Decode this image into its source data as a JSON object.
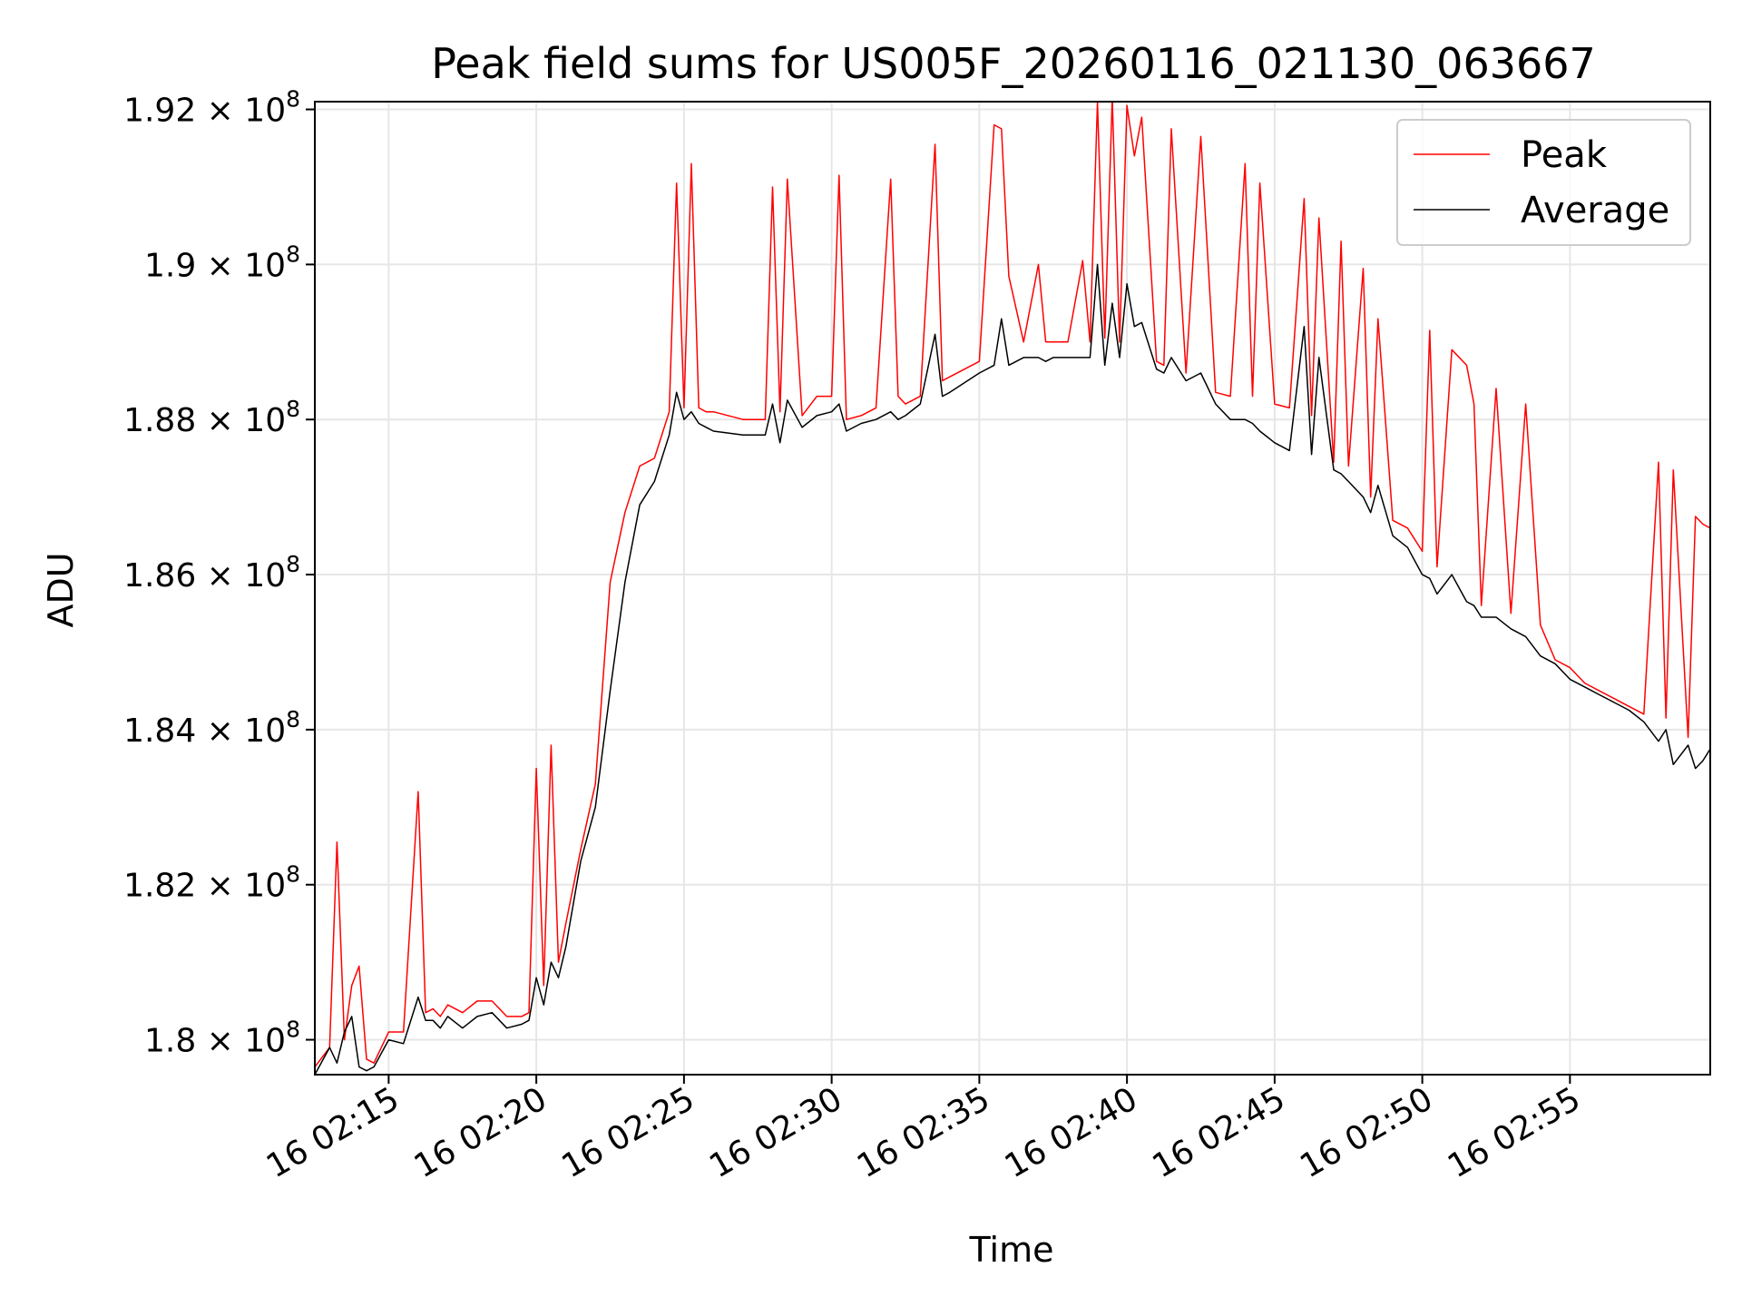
{
  "chart_data": {
    "type": "line",
    "title": "Peak field sums for US005F_20260116_021130_063667",
    "xlabel": "Time",
    "ylabel": "ADU",
    "x_range": [
      "16 02:12:30",
      "16 02:59:45"
    ],
    "ylim": [
      179.55,
      192.1
    ],
    "y_unit_note": "values in 10^6 ADU",
    "x_ticks": [
      "16 02:15",
      "16 02:20",
      "16 02:25",
      "16 02:30",
      "16 02:35",
      "16 02:40",
      "16 02:45",
      "16 02:50",
      "16 02:55"
    ],
    "y_ticks": [
      {
        "mantissa": "1.8",
        "exp": "8"
      },
      {
        "mantissa": "1.82",
        "exp": "8"
      },
      {
        "mantissa": "1.84",
        "exp": "8"
      },
      {
        "mantissa": "1.86",
        "exp": "8"
      },
      {
        "mantissa": "1.88",
        "exp": "8"
      },
      {
        "mantissa": "1.9",
        "exp": "8"
      },
      {
        "mantissa": "1.92",
        "exp": "8"
      }
    ],
    "grid": true,
    "legend_position": "top-right",
    "series": [
      {
        "name": "Peak",
        "color": "#ff0000",
        "x": [
          "02:12:30",
          "02:13:00",
          "02:13:15",
          "02:13:30",
          "02:13:45",
          "02:14:00",
          "02:14:15",
          "02:14:30",
          "02:15:00",
          "02:15:30",
          "02:16:00",
          "02:16:15",
          "02:16:30",
          "02:16:45",
          "02:17:00",
          "02:17:30",
          "02:18:00",
          "02:18:30",
          "02:19:00",
          "02:19:30",
          "02:19:45",
          "02:20:00",
          "02:20:15",
          "02:20:30",
          "02:20:45",
          "02:21:00",
          "02:21:30",
          "02:22:00",
          "02:22:30",
          "02:23:00",
          "02:23:30",
          "02:24:00",
          "02:24:30",
          "02:24:45",
          "02:25:00",
          "02:25:15",
          "02:25:30",
          "02:25:45",
          "02:26:00",
          "02:27:00",
          "02:27:45",
          "02:28:00",
          "02:28:15",
          "02:28:30",
          "02:29:00",
          "02:29:30",
          "02:30:00",
          "02:30:15",
          "02:30:30",
          "02:31:00",
          "02:31:30",
          "02:32:00",
          "02:32:15",
          "02:32:30",
          "02:33:00",
          "02:33:30",
          "02:33:45",
          "02:34:00",
          "02:35:00",
          "02:35:30",
          "02:35:45",
          "02:36:00",
          "02:36:30",
          "02:37:00",
          "02:37:15",
          "02:37:30",
          "02:38:00",
          "02:38:30",
          "02:38:45",
          "02:39:00",
          "02:39:15",
          "02:39:30",
          "02:39:45",
          "02:40:00",
          "02:40:15",
          "02:40:30",
          "02:41:00",
          "02:41:15",
          "02:41:30",
          "02:42:00",
          "02:42:30",
          "02:43:00",
          "02:43:30",
          "02:44:00",
          "02:44:15",
          "02:44:30",
          "02:45:00",
          "02:45:30",
          "02:46:00",
          "02:46:15",
          "02:46:30",
          "02:47:00",
          "02:47:15",
          "02:47:30",
          "02:48:00",
          "02:48:15",
          "02:48:30",
          "02:49:00",
          "02:49:30",
          "02:50:00",
          "02:50:15",
          "02:50:30",
          "02:51:00",
          "02:51:30",
          "02:51:45",
          "02:52:00",
          "02:52:30",
          "02:53:00",
          "02:53:30",
          "02:54:00",
          "02:54:30",
          "02:55:00",
          "02:55:30",
          "02:56:00",
          "02:56:30",
          "02:57:00",
          "02:57:30",
          "02:58:00",
          "02:58:15",
          "02:58:30",
          "02:59:00",
          "02:59:15",
          "02:59:30",
          "02:59:45"
        ],
        "y": [
          179.65,
          179.9,
          182.55,
          180.0,
          180.7,
          180.95,
          179.75,
          179.7,
          180.1,
          180.1,
          183.2,
          180.35,
          180.4,
          180.3,
          180.45,
          180.35,
          180.5,
          180.5,
          180.3,
          180.3,
          180.35,
          183.5,
          180.7,
          183.8,
          181.0,
          181.5,
          182.45,
          183.3,
          185.9,
          186.8,
          187.4,
          187.5,
          188.1,
          191.05,
          188.15,
          191.3,
          188.15,
          188.1,
          188.1,
          188.0,
          188.0,
          191.0,
          188.1,
          191.1,
          188.05,
          188.3,
          188.3,
          191.15,
          188.0,
          188.05,
          188.15,
          191.1,
          188.3,
          188.2,
          188.3,
          191.55,
          188.5,
          188.55,
          188.75,
          191.8,
          191.75,
          189.85,
          189.0,
          190.0,
          189.0,
          189.0,
          189.0,
          190.05,
          189.0,
          192.1,
          189.05,
          192.15,
          189.0,
          192.05,
          191.4,
          191.9,
          188.75,
          188.7,
          191.75,
          188.6,
          191.65,
          188.35,
          188.3,
          191.3,
          188.3,
          191.05,
          188.2,
          188.15,
          190.85,
          188.05,
          190.6,
          187.45,
          190.3,
          187.4,
          189.95,
          187.0,
          189.3,
          186.7,
          186.6,
          186.3,
          189.15,
          186.1,
          188.9,
          188.7,
          188.2,
          185.6,
          188.4,
          185.5,
          188.2,
          185.35,
          184.9,
          184.8,
          184.6,
          184.5,
          184.4,
          184.3,
          184.2,
          187.45,
          184.15,
          187.35,
          183.9,
          186.75,
          186.65,
          186.6
        ]
      },
      {
        "name": "Average",
        "color": "#000000",
        "x": [
          "02:12:30",
          "02:13:00",
          "02:13:15",
          "02:13:30",
          "02:13:45",
          "02:14:00",
          "02:14:15",
          "02:14:30",
          "02:15:00",
          "02:15:30",
          "02:16:00",
          "02:16:15",
          "02:16:30",
          "02:16:45",
          "02:17:00",
          "02:17:30",
          "02:18:00",
          "02:18:30",
          "02:19:00",
          "02:19:30",
          "02:19:45",
          "02:20:00",
          "02:20:15",
          "02:20:30",
          "02:20:45",
          "02:21:00",
          "02:21:30",
          "02:22:00",
          "02:22:30",
          "02:23:00",
          "02:23:30",
          "02:24:00",
          "02:24:30",
          "02:24:45",
          "02:25:00",
          "02:25:15",
          "02:25:30",
          "02:25:45",
          "02:26:00",
          "02:27:00",
          "02:27:45",
          "02:28:00",
          "02:28:15",
          "02:28:30",
          "02:29:00",
          "02:29:30",
          "02:30:00",
          "02:30:15",
          "02:30:30",
          "02:31:00",
          "02:31:30",
          "02:32:00",
          "02:32:15",
          "02:32:30",
          "02:33:00",
          "02:33:30",
          "02:33:45",
          "02:34:00",
          "02:35:00",
          "02:35:30",
          "02:35:45",
          "02:36:00",
          "02:36:30",
          "02:37:00",
          "02:37:15",
          "02:37:30",
          "02:38:00",
          "02:38:30",
          "02:38:45",
          "02:39:00",
          "02:39:15",
          "02:39:30",
          "02:39:45",
          "02:40:00",
          "02:40:15",
          "02:40:30",
          "02:41:00",
          "02:41:15",
          "02:41:30",
          "02:42:00",
          "02:42:30",
          "02:43:00",
          "02:43:30",
          "02:44:00",
          "02:44:15",
          "02:44:30",
          "02:45:00",
          "02:45:30",
          "02:46:00",
          "02:46:15",
          "02:46:30",
          "02:47:00",
          "02:47:15",
          "02:47:30",
          "02:48:00",
          "02:48:15",
          "02:48:30",
          "02:49:00",
          "02:49:30",
          "02:50:00",
          "02:50:15",
          "02:50:30",
          "02:51:00",
          "02:51:30",
          "02:51:45",
          "02:52:00",
          "02:52:30",
          "02:53:00",
          "02:53:30",
          "02:54:00",
          "02:54:30",
          "02:55:00",
          "02:55:30",
          "02:56:00",
          "02:56:30",
          "02:57:00",
          "02:57:30",
          "02:58:00",
          "02:58:15",
          "02:58:30",
          "02:59:00",
          "02:59:15",
          "02:59:30",
          "02:59:45"
        ],
        "y": [
          179.55,
          179.9,
          179.7,
          180.1,
          180.3,
          179.65,
          179.6,
          179.65,
          180.0,
          179.95,
          180.55,
          180.25,
          180.25,
          180.15,
          180.3,
          180.15,
          180.3,
          180.35,
          180.15,
          180.2,
          180.25,
          180.8,
          180.45,
          181.0,
          180.8,
          181.2,
          182.3,
          183.0,
          184.5,
          185.9,
          186.9,
          187.2,
          187.8,
          188.35,
          188.0,
          188.1,
          187.95,
          187.9,
          187.85,
          187.8,
          187.8,
          188.2,
          187.7,
          188.25,
          187.9,
          188.05,
          188.1,
          188.2,
          187.85,
          187.95,
          188.0,
          188.1,
          188.0,
          188.05,
          188.2,
          189.1,
          188.3,
          188.35,
          188.6,
          188.7,
          189.3,
          188.7,
          188.8,
          188.8,
          188.75,
          188.8,
          188.8,
          188.8,
          188.8,
          190.0,
          188.7,
          189.5,
          188.8,
          189.75,
          189.2,
          189.25,
          188.65,
          188.6,
          188.8,
          188.5,
          188.6,
          188.2,
          188.0,
          188.0,
          187.95,
          187.85,
          187.7,
          187.6,
          189.2,
          187.55,
          188.8,
          187.35,
          187.3,
          187.2,
          187.0,
          186.8,
          187.15,
          186.5,
          186.35,
          186.0,
          185.95,
          185.75,
          186.0,
          185.65,
          185.6,
          185.45,
          185.45,
          185.3,
          185.2,
          184.95,
          184.85,
          184.65,
          184.55,
          184.45,
          184.35,
          184.25,
          184.1,
          183.85,
          184.0,
          183.55,
          183.8,
          183.5,
          183.6,
          183.75
        ]
      }
    ]
  },
  "legend": {
    "items": [
      {
        "label": "Peak",
        "color": "#ff0000"
      },
      {
        "label": "Average",
        "color": "#000000"
      }
    ]
  }
}
